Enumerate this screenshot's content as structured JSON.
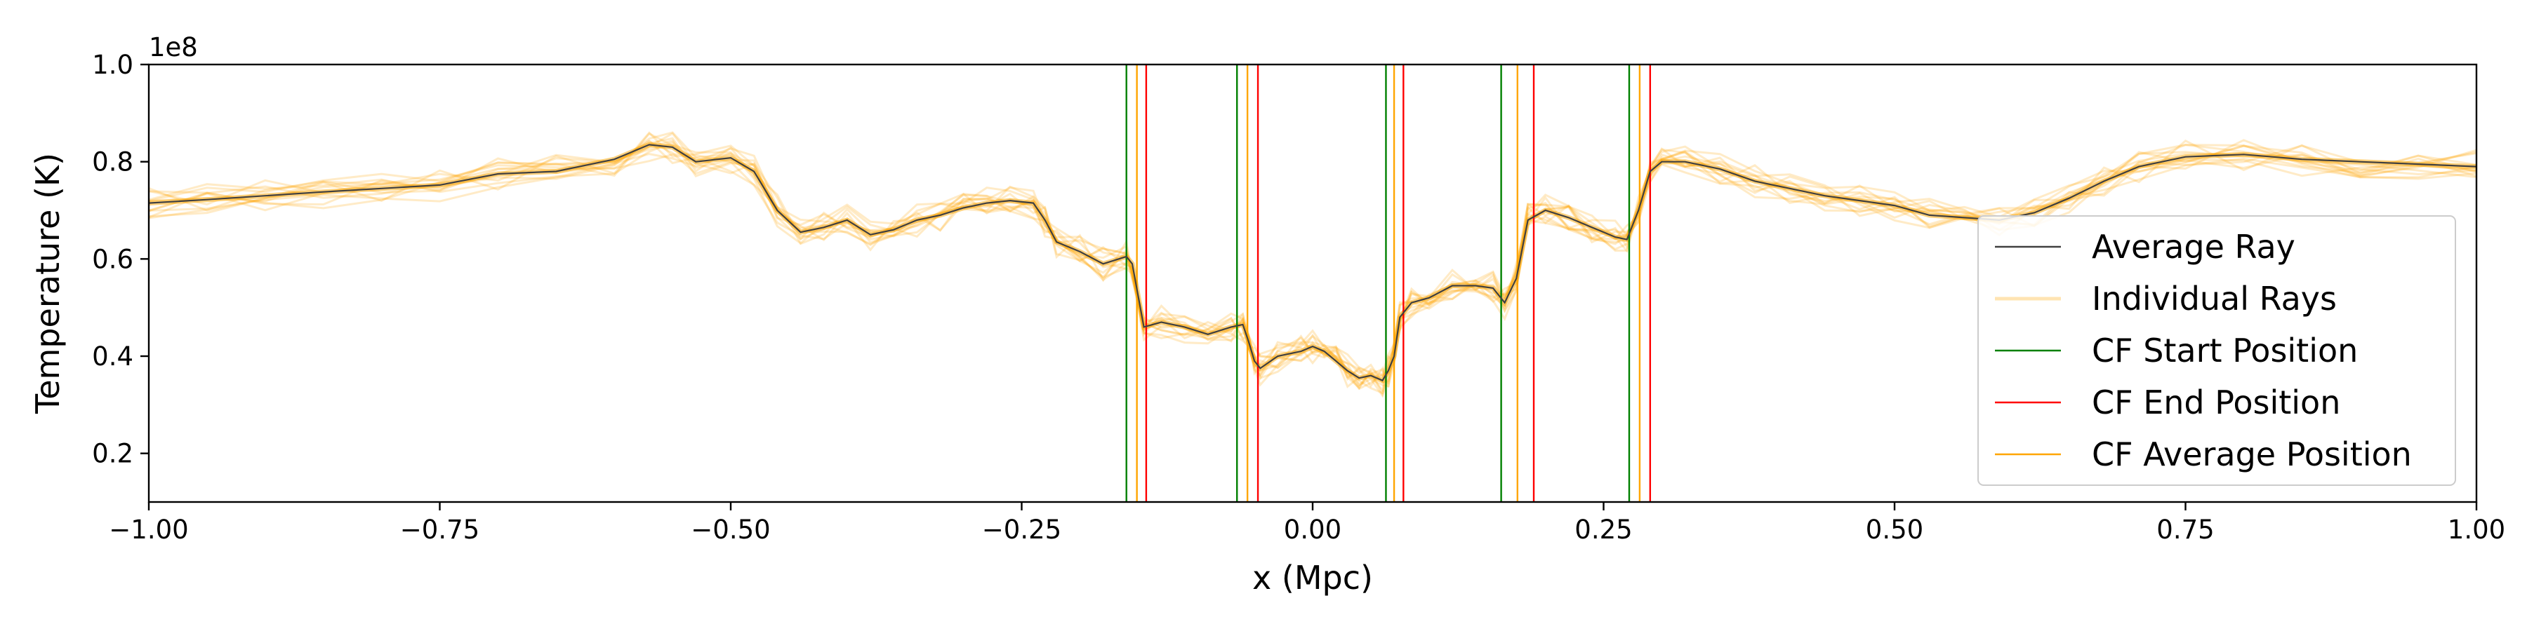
{
  "chart_data": {
    "type": "line",
    "title": "",
    "xlabel": "x (Mpc)",
    "ylabel": "Temperature (K)",
    "y_offset_label": "1e8",
    "xlim": [
      -1.0,
      1.0
    ],
    "ylim": [
      0.1,
      1.0
    ],
    "xticks": [
      -1.0,
      -0.75,
      -0.5,
      -0.25,
      0.0,
      0.25,
      0.5,
      0.75,
      1.0
    ],
    "xtick_labels": [
      "−1.00",
      "−0.75",
      "−0.50",
      "−0.25",
      "0.00",
      "0.25",
      "0.50",
      "0.75",
      "1.00"
    ],
    "yticks": [
      0.2,
      0.4,
      0.6,
      0.8,
      1.0
    ],
    "ytick_labels": [
      "0.2",
      "0.4",
      "0.6",
      "0.8",
      "1.0"
    ],
    "grid": false,
    "legend_position": "lower-right",
    "colors": {
      "average": "#404040",
      "individual": "#ffa500",
      "cf_start": "#008000",
      "cf_end": "#ff0000",
      "cf_average": "#ffa500"
    },
    "series": [
      {
        "name": "Average Ray",
        "x": [
          -1.0,
          -0.95,
          -0.9,
          -0.85,
          -0.8,
          -0.75,
          -0.7,
          -0.65,
          -0.6,
          -0.57,
          -0.55,
          -0.53,
          -0.5,
          -0.48,
          -0.46,
          -0.44,
          -0.42,
          -0.4,
          -0.38,
          -0.36,
          -0.34,
          -0.32,
          -0.3,
          -0.28,
          -0.26,
          -0.24,
          -0.23,
          -0.22,
          -0.2,
          -0.18,
          -0.16,
          -0.155,
          -0.145,
          -0.13,
          -0.11,
          -0.09,
          -0.07,
          -0.06,
          -0.055,
          -0.05,
          -0.045,
          -0.03,
          -0.01,
          0.0,
          0.01,
          0.02,
          0.03,
          0.04,
          0.05,
          0.06,
          0.065,
          0.07,
          0.075,
          0.085,
          0.1,
          0.12,
          0.14,
          0.155,
          0.165,
          0.175,
          0.185,
          0.2,
          0.22,
          0.24,
          0.26,
          0.27,
          0.28,
          0.29,
          0.3,
          0.32,
          0.35,
          0.38,
          0.41,
          0.44,
          0.47,
          0.5,
          0.53,
          0.56,
          0.59,
          0.62,
          0.65,
          0.68,
          0.71,
          0.75,
          0.8,
          0.85,
          0.9,
          0.95,
          1.0
        ],
        "values": [
          0.715,
          0.722,
          0.73,
          0.738,
          0.745,
          0.752,
          0.775,
          0.78,
          0.805,
          0.835,
          0.83,
          0.8,
          0.808,
          0.78,
          0.7,
          0.655,
          0.665,
          0.68,
          0.65,
          0.66,
          0.68,
          0.69,
          0.705,
          0.715,
          0.72,
          0.715,
          0.68,
          0.635,
          0.615,
          0.59,
          0.605,
          0.59,
          0.46,
          0.47,
          0.46,
          0.445,
          0.46,
          0.465,
          0.43,
          0.39,
          0.375,
          0.4,
          0.41,
          0.42,
          0.41,
          0.39,
          0.37,
          0.355,
          0.36,
          0.35,
          0.37,
          0.4,
          0.48,
          0.51,
          0.52,
          0.545,
          0.545,
          0.54,
          0.51,
          0.56,
          0.68,
          0.7,
          0.685,
          0.665,
          0.645,
          0.64,
          0.7,
          0.78,
          0.8,
          0.8,
          0.785,
          0.76,
          0.745,
          0.73,
          0.72,
          0.71,
          0.69,
          0.685,
          0.68,
          0.695,
          0.725,
          0.76,
          0.79,
          0.81,
          0.815,
          0.805,
          0.8,
          0.795,
          0.79
        ]
      },
      {
        "name": "Individual Rays"
      },
      {
        "name": "CF Start Position",
        "x": [
          -0.16,
          -0.065,
          0.063,
          0.162,
          0.272
        ]
      },
      {
        "name": "CF End Position",
        "x": [
          -0.143,
          -0.047,
          0.078,
          0.19,
          0.29
        ]
      },
      {
        "name": "CF Average Position",
        "x": [
          -0.151,
          -0.056,
          0.07,
          0.176,
          0.281
        ]
      }
    ]
  }
}
